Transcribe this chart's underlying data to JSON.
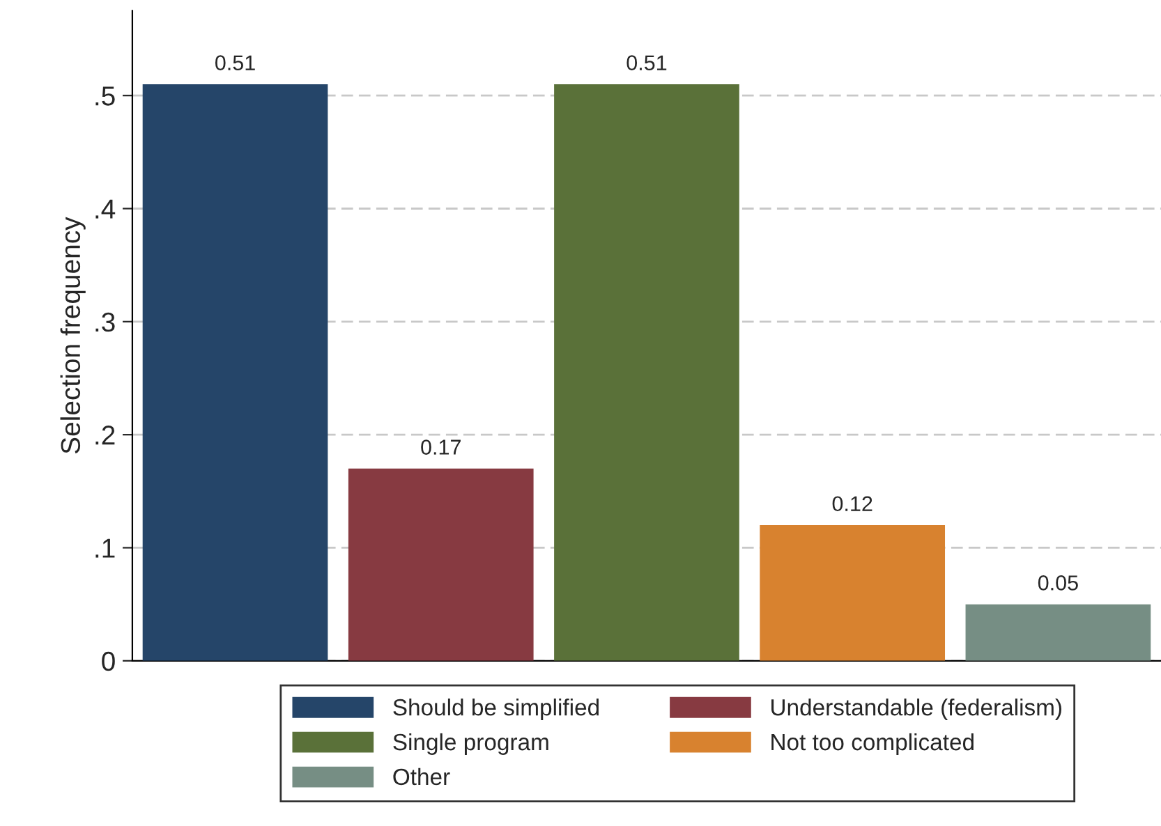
{
  "chart_data": {
    "type": "bar",
    "ylabel": "Selection frequency",
    "categories": [
      null,
      null,
      null,
      null,
      null
    ],
    "series": [
      {
        "name": "Should be simplified",
        "color": "#254569",
        "values": [
          0.51,
          null,
          null,
          null,
          null
        ]
      },
      {
        "name": "Understandable (federalism)",
        "color": "#873a41",
        "values": [
          null,
          0.17,
          null,
          null,
          null
        ]
      },
      {
        "name": "Single program",
        "color": "#5a7139",
        "values": [
          null,
          null,
          0.51,
          null,
          null
        ]
      },
      {
        "name": "Not too complicated",
        "color": "#d8822f",
        "values": [
          null,
          null,
          null,
          0.12,
          null
        ]
      },
      {
        "name": "Other",
        "color": "#768e84",
        "values": [
          null,
          null,
          null,
          null,
          0.05
        ]
      }
    ],
    "ylim": [
      0,
      0.575
    ],
    "yticks": [
      {
        "value": 0,
        "label": "0"
      },
      {
        "value": 0.1,
        "label": ".1"
      },
      {
        "value": 0.2,
        "label": ".2"
      },
      {
        "value": 0.3,
        "label": ".3"
      },
      {
        "value": 0.4,
        "label": ".4"
      },
      {
        "value": 0.5,
        "label": ".5"
      }
    ],
    "grid": "y",
    "data_labels": true,
    "legend": "bottom"
  }
}
